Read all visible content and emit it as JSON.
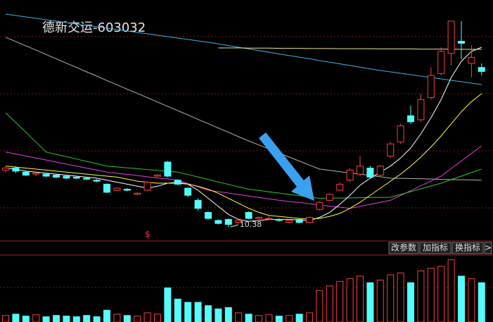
{
  "chart_data": {
    "type": "candlestick",
    "title": "德新交运-603032",
    "ylim": [
      9.75,
      21.65
    ],
    "up_color": "#ff3c3c",
    "down_color": "#54fcfc",
    "open": [
      13.2,
      13.3,
      13.1,
      13.0,
      13.0,
      12.95,
      12.9,
      12.85,
      12.8,
      12.7,
      12.5,
      12.2,
      12.25,
      12.0,
      12.2,
      12.9,
      13.6,
      12.7,
      12.3,
      11.7,
      11.1,
      10.7,
      10.75,
      10.6,
      11.1,
      10.8,
      10.8,
      10.75,
      10.6,
      10.75,
      10.6,
      11.25,
      11.7,
      12.2,
      12.7,
      13.0,
      13.3,
      12.95,
      13.9,
      14.6,
      15.9,
      15.7,
      16.8,
      18.0,
      19.0,
      19.6,
      18.5,
      18.3
    ],
    "high": [
      13.4,
      13.4,
      13.15,
      13.1,
      13.05,
      13.0,
      12.95,
      12.9,
      12.85,
      12.75,
      12.55,
      12.35,
      12.3,
      12.1,
      12.65,
      13.0,
      13.65,
      12.75,
      12.35,
      11.8,
      11.15,
      10.75,
      10.8,
      10.75,
      11.15,
      10.9,
      10.9,
      10.8,
      10.75,
      10.8,
      10.9,
      11.65,
      12.05,
      12.6,
      13.3,
      13.9,
      13.4,
      13.45,
      14.6,
      15.5,
      16.4,
      17.0,
      18.3,
      19.3,
      20.6,
      20.6,
      19.4,
      18.5
    ],
    "low": [
      13.1,
      13.05,
      12.9,
      12.9,
      12.85,
      12.8,
      12.75,
      12.75,
      12.7,
      12.6,
      12.05,
      12.15,
      12.15,
      11.95,
      12.15,
      12.85,
      12.85,
      12.45,
      11.85,
      11.2,
      10.75,
      10.5,
      10.38,
      10.55,
      10.75,
      10.75,
      10.7,
      10.65,
      10.55,
      10.55,
      10.55,
      11.2,
      11.65,
      12.15,
      12.6,
      12.9,
      12.8,
      12.9,
      13.8,
      14.5,
      15.5,
      15.6,
      16.7,
      17.9,
      18.4,
      18.7,
      17.8,
      17.9
    ],
    "close": [
      13.3,
      13.15,
      12.95,
      13.05,
      12.9,
      12.85,
      12.8,
      12.8,
      12.75,
      12.65,
      12.1,
      12.3,
      12.2,
      12.05,
      12.6,
      12.95,
      12.9,
      12.5,
      11.95,
      11.3,
      10.8,
      10.55,
      10.5,
      10.7,
      10.8,
      10.85,
      10.8,
      10.7,
      10.7,
      10.6,
      10.85,
      11.6,
      12.0,
      12.5,
      13.2,
      13.4,
      12.85,
      13.4,
      14.5,
      15.4,
      15.6,
      16.7,
      17.9,
      19.1,
      20.6,
      19.5,
      18.8,
      18.1
    ],
    "low_annotation": 10.38,
    "lines": [
      {
        "color": "#b4b4b4",
        "values": [
          19.8,
          19.59,
          19.37,
          19.16,
          18.94,
          18.73,
          18.51,
          18.3,
          18.08,
          17.87,
          17.65,
          17.44,
          17.22,
          17.01,
          16.8,
          16.58,
          16.37,
          16.15,
          15.94,
          15.72,
          15.51,
          15.29,
          15.08,
          14.86,
          14.65,
          14.45,
          14.25,
          14.05,
          13.85,
          13.65,
          13.45,
          13.25,
          13.19,
          13.12,
          13.06,
          13.0,
          12.93,
          12.87,
          12.8,
          12.79,
          12.78,
          12.77,
          12.76,
          12.74,
          12.73,
          12.72,
          12.71,
          12.7
        ]
      },
      {
        "color": "#3fb4e6",
        "values": [
          20.95,
          20.88,
          20.81,
          20.74,
          20.67,
          20.6,
          20.53,
          20.46,
          20.39,
          20.32,
          20.25,
          20.18,
          20.11,
          20.04,
          19.97,
          19.9,
          19.83,
          19.76,
          19.69,
          19.62,
          19.55,
          19.47,
          19.39,
          19.3,
          19.22,
          19.14,
          19.06,
          18.97,
          18.89,
          18.81,
          18.73,
          18.64,
          18.56,
          18.48,
          18.4,
          18.31,
          18.23,
          18.15,
          18.08,
          18.01,
          17.94,
          17.87,
          17.8,
          17.73,
          17.66,
          17.59,
          17.52,
          17.45
        ]
      },
      {
        "color": "#e6e696",
        "values": [
          null,
          null,
          null,
          null,
          null,
          null,
          null,
          null,
          null,
          null,
          null,
          null,
          null,
          null,
          null,
          null,
          null,
          null,
          null,
          null,
          null,
          19.27,
          19.27,
          19.27,
          19.26,
          19.26,
          19.26,
          19.25,
          19.25,
          19.25,
          19.24,
          19.24,
          19.24,
          19.23,
          19.23,
          19.23,
          19.23,
          19.22,
          19.22,
          19.22,
          19.22,
          19.21,
          19.21,
          19.21,
          19.21,
          19.2,
          19.2,
          19.2
        ]
      },
      {
        "color": "#e040e0",
        "values": [
          14.1,
          14.0,
          13.9,
          13.8,
          13.7,
          13.6,
          13.5,
          13.4,
          13.3,
          13.2,
          13.1,
          13.04,
          12.99,
          12.93,
          12.87,
          12.81,
          12.76,
          12.7,
          12.53,
          12.37,
          12.2,
          12.13,
          12.06,
          11.99,
          11.91,
          11.84,
          11.77,
          11.7,
          11.64,
          11.59,
          11.53,
          11.47,
          11.41,
          11.36,
          11.3,
          11.4,
          11.5,
          11.6,
          11.7,
          11.94,
          12.18,
          12.42,
          12.66,
          12.9,
          13.28,
          13.65,
          14.03,
          14.4
        ]
      },
      {
        "color": "#2ec82e",
        "values": [
          16.05,
          15.56,
          15.08,
          14.59,
          14.1,
          13.98,
          13.87,
          13.75,
          13.63,
          13.52,
          13.4,
          13.36,
          13.31,
          13.27,
          13.23,
          13.19,
          13.14,
          13.1,
          12.98,
          12.86,
          12.74,
          12.61,
          12.49,
          12.37,
          12.25,
          12.19,
          12.12,
          12.06,
          11.99,
          11.93,
          11.86,
          11.8,
          11.81,
          11.81,
          11.82,
          11.83,
          11.84,
          11.84,
          11.85,
          11.99,
          12.13,
          12.27,
          12.41,
          12.55,
          12.73,
          12.9,
          13.08,
          13.25
        ]
      },
      {
        "color": "#ffffff",
        "values": [
          13.3,
          13.25,
          13.15,
          13.1,
          13.05,
          13.0,
          12.95,
          12.9,
          12.85,
          12.8,
          12.7,
          12.6,
          12.5,
          12.4,
          12.3,
          12.4,
          12.55,
          12.6,
          12.5,
          12.2,
          11.8,
          11.4,
          11.0,
          10.75,
          10.65,
          10.7,
          10.75,
          10.75,
          10.75,
          10.72,
          10.7,
          10.85,
          11.1,
          11.5,
          11.95,
          12.45,
          12.8,
          13.1,
          13.4,
          13.8,
          14.3,
          15.0,
          15.8,
          16.7,
          17.8,
          18.6,
          19.1,
          19.3
        ]
      },
      {
        "color": "#ffff3c",
        "values": [
          13.4,
          13.35,
          13.3,
          13.25,
          13.2,
          13.15,
          13.1,
          13.05,
          13.0,
          12.95,
          12.9,
          12.85,
          12.75,
          12.65,
          12.6,
          12.55,
          12.55,
          12.55,
          12.5,
          12.4,
          12.25,
          12.05,
          11.8,
          11.55,
          11.3,
          11.1,
          10.95,
          10.9,
          10.85,
          10.8,
          10.78,
          10.8,
          10.9,
          11.05,
          11.3,
          11.6,
          11.95,
          12.3,
          12.65,
          13.0,
          13.4,
          13.85,
          14.35,
          14.9,
          15.5,
          16.1,
          16.6,
          17.0
        ]
      }
    ],
    "volume": {
      "ylim": [
        0,
        100
      ],
      "values": [
        10,
        12,
        9,
        11,
        8,
        10,
        9,
        8,
        10,
        8,
        18,
        12,
        10,
        9,
        14,
        12,
        52,
        35,
        30,
        30,
        25,
        20,
        22,
        14,
        12,
        10,
        11,
        9,
        10,
        12,
        14,
        48,
        55,
        62,
        66,
        70,
        60,
        64,
        72,
        75,
        60,
        78,
        82,
        85,
        95,
        70,
        66,
        60
      ]
    },
    "marker": "$"
  },
  "toolbar": [
    "改参数",
    "加指标",
    "换指标",
    ">"
  ]
}
